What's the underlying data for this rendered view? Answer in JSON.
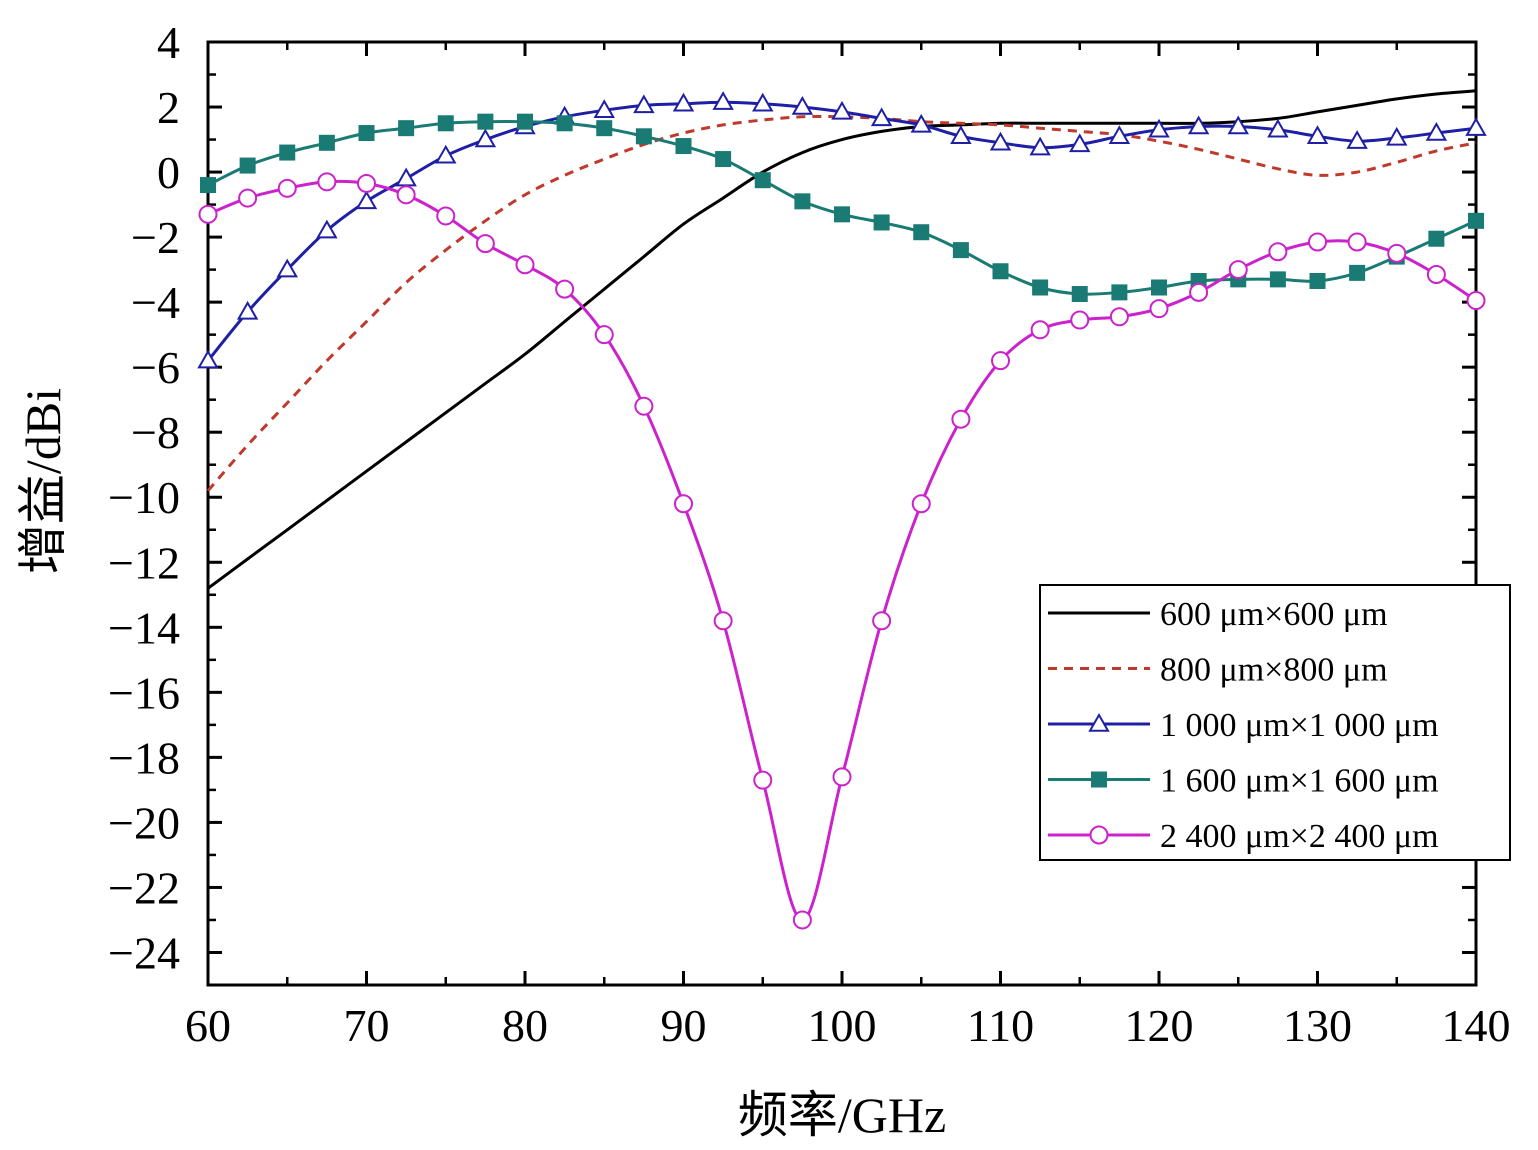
{
  "chart_data": {
    "type": "line",
    "xlabel": "频率/GHz",
    "ylabel": "增益/dBi",
    "xlim": [
      60,
      140
    ],
    "ylim": [
      -25,
      4
    ],
    "xticks": [
      60,
      70,
      80,
      90,
      100,
      110,
      120,
      130,
      140
    ],
    "yticks": [
      4,
      2,
      0,
      -2,
      -4,
      -6,
      -8,
      -10,
      -12,
      -14,
      -16,
      -18,
      -20,
      -22,
      -24
    ],
    "ytick_labels": [
      "4",
      "2",
      "0",
      "−2",
      "−4",
      "−6",
      "−8",
      "−10",
      "−12",
      "−14",
      "−16",
      "−18",
      "−20",
      "−22",
      "−24"
    ],
    "xtick_labels": [
      "60",
      "70",
      "80",
      "90",
      "100",
      "110",
      "120",
      "130",
      "140"
    ],
    "grid": false,
    "legend_position": "lower-right",
    "x": [
      60,
      62.5,
      65,
      67.5,
      70,
      72.5,
      75,
      77.5,
      80,
      82.5,
      85,
      87.5,
      90,
      92.5,
      95,
      97.5,
      100,
      102.5,
      105,
      107.5,
      110,
      112.5,
      115,
      117.5,
      120,
      122.5,
      125,
      127.5,
      130,
      132.5,
      135,
      137.5,
      140
    ],
    "series": [
      {
        "name": "600 μm×600 μm",
        "color": "#000000",
        "style": "solid",
        "marker": "none",
        "values": [
          -12.8,
          -11.9,
          -11.0,
          -10.1,
          -9.2,
          -8.3,
          -7.4,
          -6.5,
          -5.6,
          -4.6,
          -3.6,
          -2.6,
          -1.6,
          -0.8,
          0.0,
          0.6,
          1.0,
          1.25,
          1.4,
          1.45,
          1.5,
          1.5,
          1.5,
          1.5,
          1.5,
          1.5,
          1.55,
          1.65,
          1.85,
          2.05,
          2.25,
          2.4,
          2.5
        ]
      },
      {
        "name": "800 μm×800 μm",
        "color": "#c0392b",
        "style": "dashed",
        "marker": "none",
        "values": [
          -9.8,
          -8.4,
          -7.1,
          -5.8,
          -4.6,
          -3.4,
          -2.4,
          -1.5,
          -0.7,
          -0.1,
          0.4,
          0.85,
          1.2,
          1.45,
          1.6,
          1.7,
          1.7,
          1.65,
          1.55,
          1.5,
          1.45,
          1.35,
          1.25,
          1.15,
          0.95,
          0.7,
          0.4,
          0.1,
          -0.1,
          0.0,
          0.3,
          0.65,
          0.9
        ]
      },
      {
        "name": "1 000 μm×1 000 μm",
        "color": "#1f1fa5",
        "style": "solid",
        "marker": "triangle-open",
        "values": [
          -5.8,
          -4.3,
          -3.0,
          -1.8,
          -0.9,
          -0.2,
          0.5,
          1.0,
          1.4,
          1.7,
          1.9,
          2.05,
          2.1,
          2.15,
          2.1,
          2.0,
          1.85,
          1.65,
          1.45,
          1.1,
          0.9,
          0.75,
          0.85,
          1.1,
          1.3,
          1.4,
          1.4,
          1.3,
          1.1,
          0.95,
          1.05,
          1.2,
          1.35
        ]
      },
      {
        "name": "1 600 μm×1 600 μm",
        "color": "#1a7a74",
        "style": "solid",
        "marker": "square-filled",
        "values": [
          -0.4,
          0.2,
          0.6,
          0.9,
          1.2,
          1.35,
          1.5,
          1.55,
          1.55,
          1.5,
          1.35,
          1.1,
          0.8,
          0.4,
          -0.25,
          -0.9,
          -1.3,
          -1.55,
          -1.85,
          -2.4,
          -3.05,
          -3.55,
          -3.75,
          -3.7,
          -3.55,
          -3.35,
          -3.3,
          -3.3,
          -3.35,
          -3.1,
          -2.6,
          -2.05,
          -1.5
        ]
      },
      {
        "name": "2 400 μm×2 400 μm",
        "color": "#cc22cc",
        "style": "solid",
        "marker": "circle-open",
        "values": [
          -1.3,
          -0.8,
          -0.5,
          -0.3,
          -0.35,
          -0.7,
          -1.35,
          -2.2,
          -2.85,
          -3.6,
          -5.0,
          -7.2,
          -10.2,
          -13.8,
          -18.7,
          -23.0,
          -18.6,
          -13.8,
          -10.2,
          -7.6,
          -5.8,
          -4.85,
          -4.55,
          -4.45,
          -4.2,
          -3.7,
          -3.0,
          -2.45,
          -2.15,
          -2.15,
          -2.5,
          -3.15,
          -3.95
        ]
      }
    ]
  }
}
